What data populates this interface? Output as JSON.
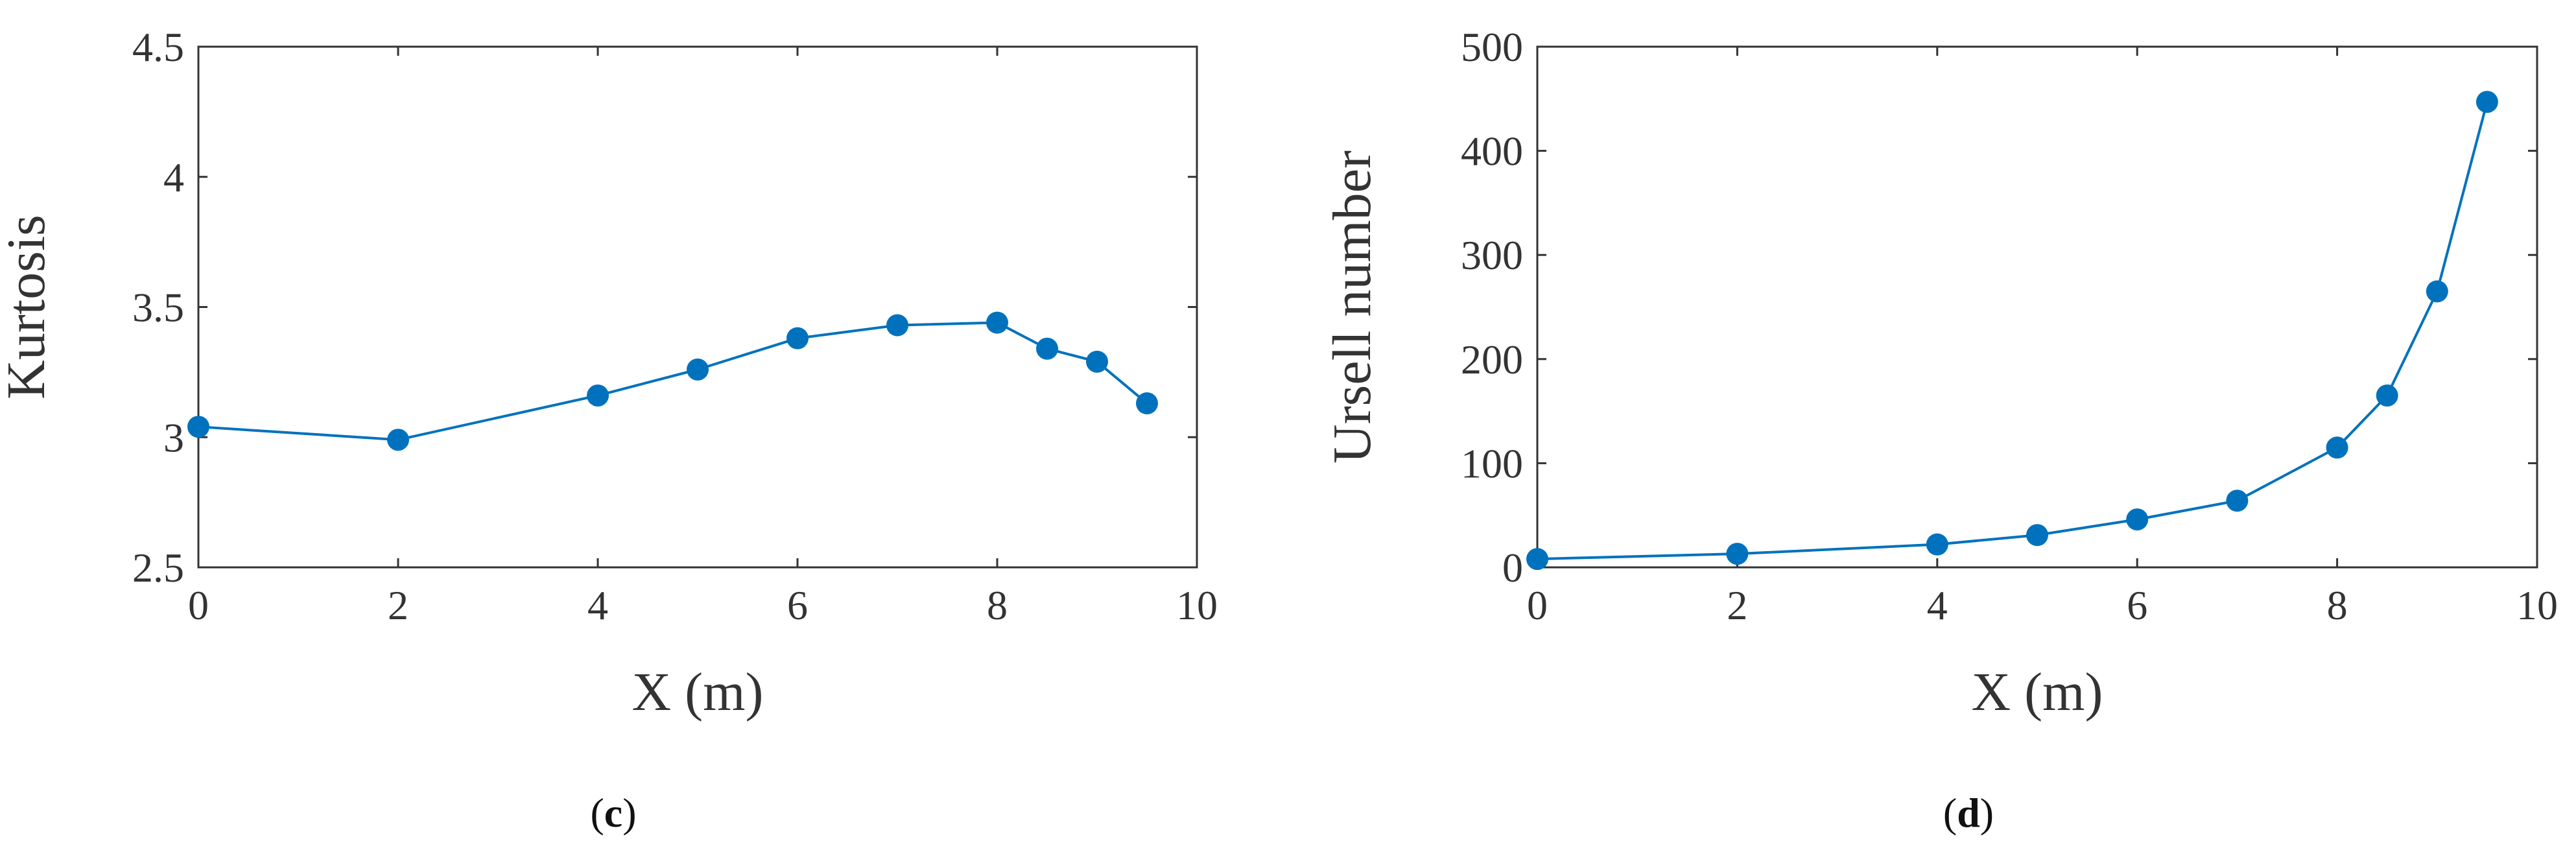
{
  "chart_data": [
    {
      "type": "line",
      "panel_label": "c",
      "xlabel": "X (m)",
      "ylabel": "Kurtosis",
      "xlim": [
        0,
        10
      ],
      "ylim": [
        2.5,
        4.5
      ],
      "xticks": [
        0,
        2,
        4,
        6,
        8,
        10
      ],
      "yticks": [
        2.5,
        3,
        3.5,
        4,
        4.5
      ],
      "ytick_labels": [
        "2.5",
        "3",
        "3.5",
        "4",
        "4.5"
      ],
      "grid": false,
      "color": "#0072BD",
      "series": [
        {
          "x": [
            0,
            2,
            4,
            5,
            6,
            7,
            8,
            8.5,
            9,
            9.5
          ],
          "y": [
            3.04,
            2.99,
            3.16,
            3.26,
            3.38,
            3.43,
            3.44,
            3.34,
            3.29,
            3.13
          ]
        }
      ]
    },
    {
      "type": "line",
      "panel_label": "d",
      "xlabel": "X (m)",
      "ylabel": "Ursell number",
      "xlim": [
        0,
        10
      ],
      "ylim": [
        0,
        500
      ],
      "xticks": [
        0,
        2,
        4,
        6,
        8,
        10
      ],
      "yticks": [
        0,
        100,
        200,
        300,
        400,
        500
      ],
      "ytick_labels": [
        "0",
        "100",
        "200",
        "300",
        "400",
        "500"
      ],
      "grid": false,
      "color": "#0072BD",
      "series": [
        {
          "x": [
            0,
            2,
            4,
            5,
            6,
            7,
            8,
            8.5,
            9,
            9.5
          ],
          "y": [
            8,
            13,
            22,
            31,
            46,
            64,
            115,
            165,
            265,
            447
          ]
        }
      ]
    }
  ]
}
